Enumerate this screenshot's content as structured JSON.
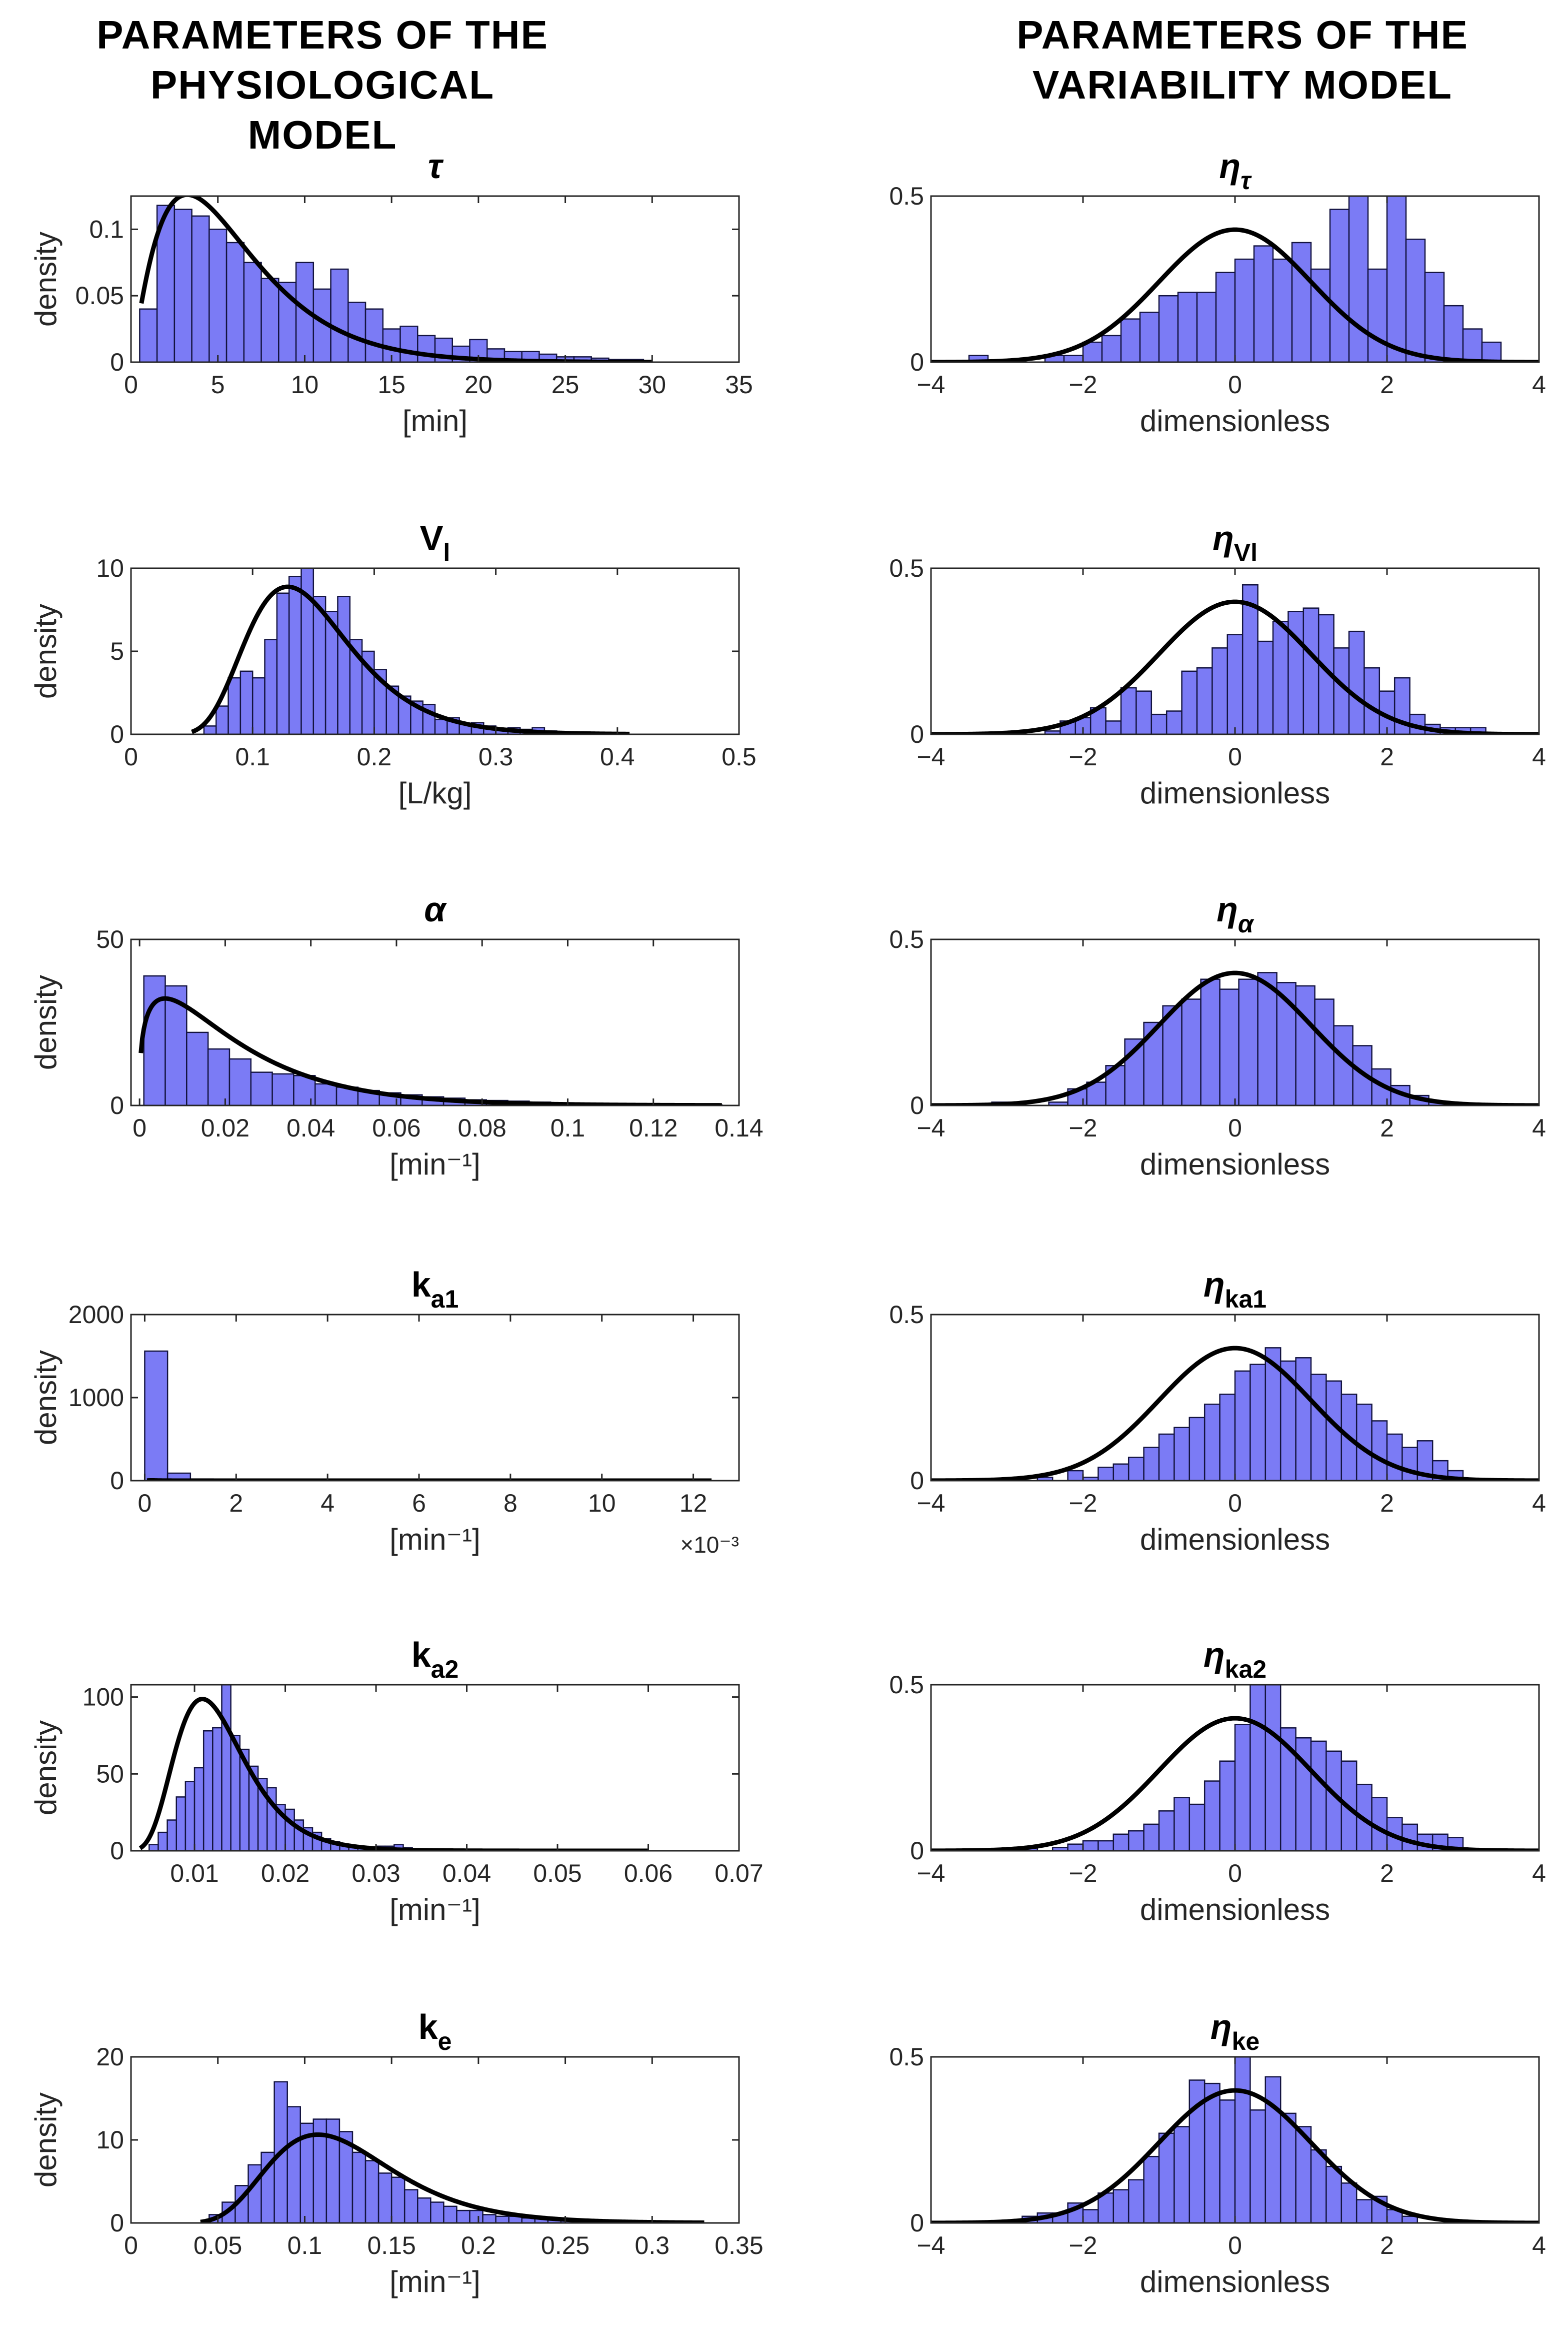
{
  "headers": {
    "left": [
      "PARAMETERS OF THE",
      "PHYSIOLOGICAL MODEL"
    ],
    "right": [
      "PARAMETERS OF THE",
      "VARIABILITY MODEL"
    ]
  },
  "colors": {
    "bar_fill": "#7b7bf5",
    "bar_edge": "#141440",
    "curve": "#000000",
    "axes": "#262626"
  },
  "chart_data": [
    {
      "id": "tau",
      "type": "bar",
      "title": "τ",
      "title_main": "τ",
      "title_sub": "",
      "italic": true,
      "ylabel": "density",
      "xlabel": "[min]",
      "xlim": [
        0,
        35
      ],
      "ylim": [
        0,
        0.125
      ],
      "xticks": [
        0,
        5,
        10,
        15,
        20,
        25,
        30,
        35
      ],
      "xticklabels": [
        "0",
        "5",
        "10",
        "15",
        "20",
        "25",
        "30",
        "35"
      ],
      "yticks": [
        0,
        0.05,
        0.1
      ],
      "yticklabels": [
        "0",
        "0.05",
        "0.1"
      ],
      "bins": {
        "start": 0.5,
        "width": 1.0,
        "values": [
          0.04,
          0.118,
          0.115,
          0.11,
          0.1,
          0.09,
          0.075,
          0.063,
          0.06,
          0.075,
          0.055,
          0.07,
          0.045,
          0.04,
          0.025,
          0.027,
          0.02,
          0.018,
          0.012,
          0.017,
          0.01,
          0.008,
          0.008,
          0.006,
          0.004,
          0.004,
          0.003,
          0.002,
          0.002
        ]
      },
      "fit": {
        "kind": "gamma",
        "shape": 2.2,
        "scale": 2.7,
        "x_range": [
          0.6,
          30
        ]
      }
    },
    {
      "id": "Vl",
      "type": "bar",
      "title": "Vl",
      "title_main": "V",
      "title_sub": "l",
      "italic": false,
      "ylabel": "density",
      "xlabel": "[L/kg]",
      "xlim": [
        0,
        0.5
      ],
      "ylim": [
        0,
        10
      ],
      "xticks": [
        0,
        0.1,
        0.2,
        0.3,
        0.4,
        0.5
      ],
      "xticklabels": [
        "0",
        "0.1",
        "0.2",
        "0.3",
        "0.4",
        "0.5"
      ],
      "yticks": [
        0,
        5,
        10
      ],
      "yticklabels": [
        "0",
        "5",
        "10"
      ],
      "bins": {
        "start": 0.06,
        "width": 0.01,
        "values": [
          0.5,
          1.7,
          3.4,
          3.8,
          3.4,
          5.7,
          8.5,
          9.5,
          10,
          8.3,
          7.4,
          8.3,
          5.7,
          5.0,
          3.9,
          2.9,
          2.3,
          2.0,
          1.8,
          0.9,
          1.0,
          0.6,
          0.7,
          0.5,
          0.3,
          0.4,
          0.3,
          0.4,
          0.2,
          0.1
        ]
      },
      "fit": {
        "kind": "lognormal",
        "mu": -1.94,
        "sigma": 0.33,
        "x_range": [
          0.05,
          0.41
        ]
      }
    },
    {
      "id": "alpha",
      "type": "bar",
      "title": "α",
      "title_main": "α",
      "title_sub": "",
      "italic": true,
      "ylabel": "density",
      "xlabel": "[min⁻¹]",
      "xlim": [
        -0.002,
        0.14
      ],
      "ylim": [
        0,
        50
      ],
      "xticks": [
        0,
        0.02,
        0.04,
        0.06,
        0.08,
        0.1,
        0.12,
        0.14
      ],
      "xticklabels": [
        "0",
        "0.02",
        "0.04",
        "0.06",
        "0.08",
        "0.1",
        "0.12",
        "0.14"
      ],
      "yticks": [
        0,
        50
      ],
      "yticklabels": [
        "0",
        "50"
      ],
      "bins": {
        "start": 0.001,
        "width": 0.005,
        "values": [
          39,
          36,
          22,
          17,
          14,
          10,
          9.5,
          9,
          6.5,
          5.5,
          4.5,
          3.8,
          3.2,
          2.6,
          2.2,
          1.7,
          1.5,
          1.3,
          1.0,
          0.8,
          0.7,
          0.6,
          0.5,
          0.4,
          0.3,
          0.3,
          0.2
        ]
      },
      "fit": {
        "kind": "gamma",
        "shape": 1.35,
        "scale": 0.017,
        "x_range": [
          0.0003,
          0.136
        ]
      }
    },
    {
      "id": "ka1",
      "type": "bar",
      "title": "ka1",
      "title_main": "k",
      "title_sub": "a1",
      "italic": false,
      "ylabel": "density",
      "xlabel": "[min⁻¹]",
      "exponent_label": "×10⁻³",
      "xlim": [
        -0.3,
        13
      ],
      "ylim": [
        0,
        2000
      ],
      "xticks": [
        0,
        2,
        4,
        6,
        8,
        10,
        12
      ],
      "xticklabels": [
        "0",
        "2",
        "4",
        "6",
        "8",
        "10",
        "12"
      ],
      "yticks": [
        0,
        1000,
        2000
      ],
      "yticklabels": [
        "0",
        "1000",
        "2000"
      ],
      "bins": {
        "start": 0.0,
        "width": 0.5,
        "values": [
          1560,
          90,
          20,
          10,
          6,
          5,
          4,
          3,
          2,
          2,
          1,
          1,
          1,
          1,
          1,
          1,
          1,
          1,
          1,
          1,
          1,
          1,
          1,
          1
        ]
      },
      "fit": {
        "kind": "lognormal",
        "mu": -1.5,
        "sigma": 0.7,
        "x_range": [
          0.05,
          12.4
        ]
      }
    },
    {
      "id": "ka2",
      "type": "bar",
      "title": "ka2",
      "title_main": "k",
      "title_sub": "a2",
      "italic": false,
      "ylabel": "density",
      "xlabel": "[min⁻¹]",
      "xlim": [
        0.003,
        0.07
      ],
      "ylim": [
        0,
        108
      ],
      "xticks": [
        0.01,
        0.02,
        0.03,
        0.04,
        0.05,
        0.06,
        0.07
      ],
      "xticklabels": [
        "0.01",
        "0.02",
        "0.03",
        "0.04",
        "0.05",
        "0.06",
        "0.07"
      ],
      "yticks": [
        0,
        50,
        100
      ],
      "yticklabels": [
        "0",
        "50",
        "100"
      ],
      "bins": {
        "start": 0.005,
        "width": 0.001,
        "values": [
          4,
          12,
          20,
          35,
          45,
          54,
          78,
          80,
          108,
          75,
          66,
          55,
          47,
          41,
          30,
          27,
          20,
          15,
          12,
          8,
          6,
          4,
          3,
          2,
          2,
          3,
          3,
          4,
          2,
          1,
          1,
          1
        ]
      },
      "fit": {
        "kind": "lognormal",
        "mu": -4.4,
        "sigma": 0.35,
        "x_range": [
          0.004,
          0.06
        ]
      }
    },
    {
      "id": "ke",
      "type": "bar",
      "title": "ke",
      "title_main": "k",
      "title_sub": "e",
      "italic": false,
      "ylabel": "density",
      "xlabel": "[min⁻¹]",
      "xlim": [
        0,
        0.35
      ],
      "ylim": [
        0,
        20
      ],
      "xticks": [
        0,
        0.05,
        0.1,
        0.15,
        0.2,
        0.25,
        0.3,
        0.35
      ],
      "xticklabels": [
        "0",
        "0.05",
        "0.1",
        "0.15",
        "0.2",
        "0.25",
        "0.3",
        "0.35"
      ],
      "yticks": [
        0,
        10,
        20
      ],
      "yticklabels": [
        "0",
        "10",
        "20"
      ],
      "bins": {
        "start": 0.045,
        "width": 0.0075,
        "values": [
          1.0,
          2.5,
          4.5,
          7.0,
          8.5,
          17.0,
          14.0,
          12.0,
          12.5,
          12.5,
          11.0,
          8.5,
          7.5,
          6.0,
          5.5,
          4.0,
          3.0,
          2.5,
          2.0,
          1.5,
          1.5,
          1.0,
          0.8,
          0.8,
          0.6,
          0.5,
          0.4,
          0.3
        ]
      },
      "fit": {
        "kind": "lognormal",
        "mu": -2.12,
        "sigma": 0.33,
        "x_range": [
          0.04,
          0.33
        ]
      }
    },
    {
      "id": "eta_tau",
      "type": "bar",
      "title": "ητ",
      "title_main": "η",
      "title_sub": "τ",
      "italic": true,
      "ylabel": "",
      "xlabel": "dimensionless",
      "xlim": [
        -4,
        4
      ],
      "ylim": [
        0,
        0.5
      ],
      "xticks": [
        -4,
        -2,
        0,
        2,
        4
      ],
      "xticklabels": [
        "−4",
        "−2",
        "0",
        "2",
        "4"
      ],
      "yticks": [
        0,
        0.5
      ],
      "yticklabels": [
        "0",
        "0.5"
      ],
      "bins": {
        "start": -3.5,
        "width": 0.25,
        "values": [
          0.02,
          0.0,
          0.0,
          0.0,
          0.02,
          0.02,
          0.06,
          0.08,
          0.13,
          0.15,
          0.2,
          0.21,
          0.21,
          0.27,
          0.31,
          0.35,
          0.31,
          0.36,
          0.28,
          0.46,
          0.5,
          0.28,
          0.5,
          0.37,
          0.27,
          0.17,
          0.1,
          0.06,
          0.0
        ]
      },
      "fit": {
        "kind": "normal",
        "mu": 0,
        "sigma": 1,
        "x_range": [
          -4,
          4
        ]
      }
    },
    {
      "id": "eta_Vl",
      "type": "bar",
      "title": "ηVl",
      "title_main": "η",
      "title_sub": "Vl",
      "italic": true,
      "ylabel": "",
      "xlabel": "dimensionless",
      "xlim": [
        -4,
        4
      ],
      "ylim": [
        0,
        0.5
      ],
      "xticks": [
        -4,
        -2,
        0,
        2,
        4
      ],
      "xticklabels": [
        "−4",
        "−2",
        "0",
        "2",
        "4"
      ],
      "yticks": [
        0,
        0.5
      ],
      "yticklabels": [
        "0",
        "0.5"
      ],
      "bins": {
        "start": -2.5,
        "width": 0.2,
        "values": [
          0.01,
          0.04,
          0.05,
          0.08,
          0.04,
          0.14,
          0.13,
          0.06,
          0.07,
          0.19,
          0.2,
          0.26,
          0.3,
          0.45,
          0.28,
          0.34,
          0.37,
          0.38,
          0.36,
          0.26,
          0.31,
          0.2,
          0.13,
          0.17,
          0.06,
          0.03,
          0.02,
          0.02,
          0.02
        ]
      },
      "fit": {
        "kind": "normal",
        "mu": 0,
        "sigma": 1,
        "x_range": [
          -4,
          4
        ]
      }
    },
    {
      "id": "eta_alpha",
      "type": "bar",
      "title": "ηα",
      "title_main": "η",
      "title_sub": "α",
      "italic": true,
      "ylabel": "",
      "xlabel": "dimensionless",
      "xlim": [
        -4,
        4
      ],
      "ylim": [
        0,
        0.5
      ],
      "xticks": [
        -4,
        -2,
        0,
        2,
        4
      ],
      "xticklabels": [
        "−4",
        "−2",
        "0",
        "2",
        "4"
      ],
      "yticks": [
        0,
        0.5
      ],
      "yticklabels": [
        "0",
        "0.5"
      ],
      "bins": {
        "start": -3.2,
        "width": 0.25,
        "values": [
          0.01,
          0.0,
          0.0,
          0.01,
          0.05,
          0.07,
          0.12,
          0.2,
          0.25,
          0.3,
          0.32,
          0.38,
          0.35,
          0.38,
          0.4,
          0.37,
          0.36,
          0.32,
          0.24,
          0.18,
          0.11,
          0.06,
          0.03,
          0.01
        ]
      },
      "fit": {
        "kind": "normal",
        "mu": 0,
        "sigma": 1,
        "x_range": [
          -4,
          4
        ]
      }
    },
    {
      "id": "eta_ka1",
      "type": "bar",
      "title": "ηka1",
      "title_main": "η",
      "title_sub": "ka1",
      "italic": true,
      "ylabel": "",
      "xlabel": "dimensionless",
      "xlim": [
        -4,
        4
      ],
      "ylim": [
        0,
        0.5
      ],
      "xticks": [
        -4,
        -2,
        0,
        2,
        4
      ],
      "xticklabels": [
        "−4",
        "−2",
        "0",
        "2",
        "4"
      ],
      "yticks": [
        0,
        0.5
      ],
      "yticklabels": [
        "0",
        "0.5"
      ],
      "bins": {
        "start": -3.2,
        "width": 0.2,
        "values": [
          0.0,
          0.0,
          0.0,
          0.01,
          0.0,
          0.03,
          0.01,
          0.04,
          0.05,
          0.07,
          0.1,
          0.14,
          0.16,
          0.19,
          0.23,
          0.26,
          0.33,
          0.35,
          0.4,
          0.36,
          0.37,
          0.32,
          0.3,
          0.26,
          0.23,
          0.18,
          0.14,
          0.1,
          0.12,
          0.06,
          0.03,
          0.0
        ]
      },
      "fit": {
        "kind": "normal",
        "mu": 0,
        "sigma": 1,
        "x_range": [
          -4,
          4
        ]
      }
    },
    {
      "id": "eta_ka2",
      "type": "bar",
      "title": "ηka2",
      "title_main": "η",
      "title_sub": "ka2",
      "italic": true,
      "ylabel": "",
      "xlabel": "dimensionless",
      "xlim": [
        -4,
        4
      ],
      "ylim": [
        0,
        0.5
      ],
      "xticks": [
        -4,
        -2,
        0,
        2,
        4
      ],
      "xticklabels": [
        "−4",
        "−2",
        "0",
        "2",
        "4"
      ],
      "yticks": [
        0,
        0.5
      ],
      "yticklabels": [
        "0",
        "0.5"
      ],
      "bins": {
        "start": -3.2,
        "width": 0.2,
        "values": [
          0.0,
          0.01,
          0.01,
          0.0,
          0.01,
          0.02,
          0.03,
          0.03,
          0.05,
          0.06,
          0.08,
          0.12,
          0.16,
          0.14,
          0.21,
          0.27,
          0.38,
          0.5,
          0.5,
          0.37,
          0.34,
          0.33,
          0.3,
          0.27,
          0.2,
          0.16,
          0.1,
          0.08,
          0.05,
          0.05,
          0.04,
          0.0
        ]
      },
      "fit": {
        "kind": "normal",
        "mu": 0,
        "sigma": 1,
        "x_range": [
          -4,
          4
        ]
      }
    },
    {
      "id": "eta_ke",
      "type": "bar",
      "title": "ηke",
      "title_main": "η",
      "title_sub": "ke",
      "italic": true,
      "ylabel": "",
      "xlabel": "dimensionless",
      "xlim": [
        -4,
        4
      ],
      "ylim": [
        0,
        0.5
      ],
      "xticks": [
        -4,
        -2,
        0,
        2,
        4
      ],
      "xticklabels": [
        "−4",
        "−2",
        "0",
        "2",
        "4"
      ],
      "yticks": [
        0,
        0.5
      ],
      "yticklabels": [
        "0",
        "0.5"
      ],
      "bins": {
        "start": -3.0,
        "width": 0.2,
        "values": [
          0.0,
          0.02,
          0.03,
          0.03,
          0.06,
          0.04,
          0.09,
          0.1,
          0.13,
          0.2,
          0.27,
          0.29,
          0.43,
          0.42,
          0.37,
          0.5,
          0.34,
          0.44,
          0.33,
          0.29,
          0.22,
          0.17,
          0.12,
          0.07,
          0.08,
          0.04,
          0.02,
          0.0
        ]
      },
      "fit": {
        "kind": "normal",
        "mu": 0,
        "sigma": 1,
        "x_range": [
          -4,
          4
        ]
      }
    }
  ]
}
